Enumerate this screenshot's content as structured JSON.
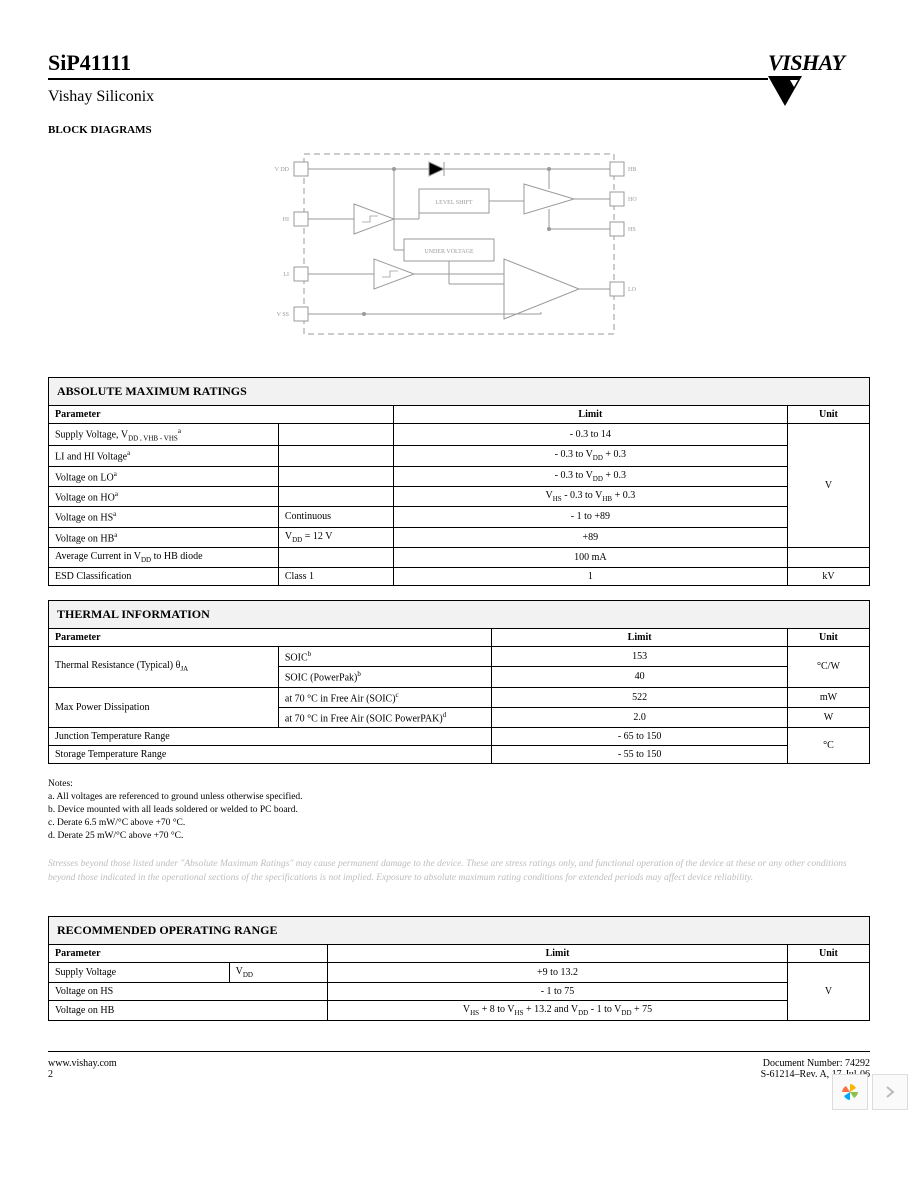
{
  "header": {
    "part_number": "SiP41111",
    "brand": "VISHAY",
    "subhead": "Vishay Siliconix"
  },
  "diagram": {
    "title": "BLOCK DIAGRAMS",
    "left_pins": [
      "V DD",
      "HI",
      "LI",
      "V SS"
    ],
    "right_pins": [
      "HB",
      "HO",
      "HS",
      "LO"
    ],
    "block_labels": [
      "LEVEL SHIFT",
      "UNDER VOLTAGE"
    ],
    "stroke": "#9a9a9a",
    "text_color": "#9a9a9a",
    "font_size": 6
  },
  "abs_max": {
    "title": "ABSOLUTE MAXIMUM RATINGS",
    "columns": [
      "Parameter",
      "Limit",
      "Unit"
    ],
    "rows": [
      {
        "param": "Supply Voltage, V",
        "param_sub": "DD , V HB - V HS",
        "param_sup": "a",
        "cond": "",
        "limit": "- 0.3 to 14",
        "unit": "V",
        "unit_rowspan": 6
      },
      {
        "param": "LI and HI Voltage",
        "param_sup": "a",
        "cond": "",
        "limit": "- 0.3 to V DD + 0.3"
      },
      {
        "param": "Voltage on LO",
        "param_sup": "a",
        "cond": "",
        "limit": "- 0.3 to V DD + 0.3"
      },
      {
        "param": "Voltage on HO",
        "param_sup": "a",
        "cond": "",
        "limit": "V HS - 0.3 to V HB + 0.3"
      },
      {
        "param": "Voltage on HS",
        "param_sup": "a",
        "cond": "Continuous",
        "limit": "- 1 to +89"
      },
      {
        "param": "Voltage on HB",
        "param_sup": "a",
        "cond": "V DD = 12 V",
        "limit": "+89"
      },
      {
        "param": "Average Current in V DD to HB diode",
        "cond": "",
        "limit": "100 mA",
        "unit": "",
        "no_unit": true
      },
      {
        "param": "ESD Classification",
        "cond": "Class 1",
        "limit": "1",
        "unit": "kV"
      }
    ]
  },
  "thermal": {
    "title": "THERMAL INFORMATION",
    "columns": [
      "Parameter",
      "Limit",
      "Unit"
    ],
    "rows": [
      {
        "param": "Thermal Resistance (Typical)           θJA",
        "param_rowspan": 2,
        "cond": "SOIC",
        "cond_sup": "b",
        "limit": "153",
        "unit": "°C/W",
        "unit_rowspan": 2
      },
      {
        "cond": "SOIC (PowerPak)",
        "cond_sup": "b",
        "limit": "40"
      },
      {
        "param": "Max Power Dissipation",
        "param_rowspan": 2,
        "cond": "at 70 °C in Free Air (SOIC)",
        "cond_sup": "c",
        "limit": "522",
        "unit": "mW"
      },
      {
        "cond": "at 70 °C in Free Air (SOIC PowerPAK)",
        "cond_sup": "d",
        "limit": "2.0",
        "unit": "W"
      },
      {
        "param": "Junction Temperature Range",
        "cond": "",
        "limit": "- 65 to 150",
        "unit": "°C",
        "unit_rowspan": 2,
        "colspan_param": true
      },
      {
        "param": "Storage Temperature Range",
        "cond": "",
        "limit": "- 55 to 150",
        "colspan_param": true
      }
    ]
  },
  "notes": {
    "heading": "Notes:",
    "items": [
      "a. All voltages are referenced to ground unless otherwise specified.",
      "b. Device mounted with all leads soldered or welded to PC board.",
      "c. Derate 6.5 mW/°C above +70 °C.",
      "d. Derate 25 mW/°C above +70 °C."
    ]
  },
  "disclaimer": "Stresses beyond those listed under \"Absolute Maximum Ratings\" may cause permanent damage to the device. These are stress ratings only, and functional operation of the device at these or any other conditions beyond those indicated in the operational sections of the specifications is not implied. Exposure to absolute maximum rating conditions for extended periods may affect device reliability.",
  "rec_op": {
    "title": "RECOMMENDED OPERATING RANGE",
    "columns": [
      "Parameter",
      "Limit",
      "Unit"
    ],
    "rows": [
      {
        "param": "Supply Voltage",
        "cond": "V DD",
        "limit": "+9 to 13.2",
        "unit": "V",
        "unit_rowspan": 3
      },
      {
        "param": "Voltage on HS",
        "cond": "",
        "limit": "- 1 to 75",
        "colspan_param": true
      },
      {
        "param": "Voltage on HB",
        "cond": "",
        "limit": "V HS + 8 to V HS + 13.2 and V DD - 1 to V DD + 75",
        "colspan_param": true
      }
    ]
  },
  "footer": {
    "url": "www.vishay.com",
    "page": "2",
    "doc_num": "Document Number: 74292",
    "rev": "S-61214–Rev. A, 17-Jul-06"
  }
}
